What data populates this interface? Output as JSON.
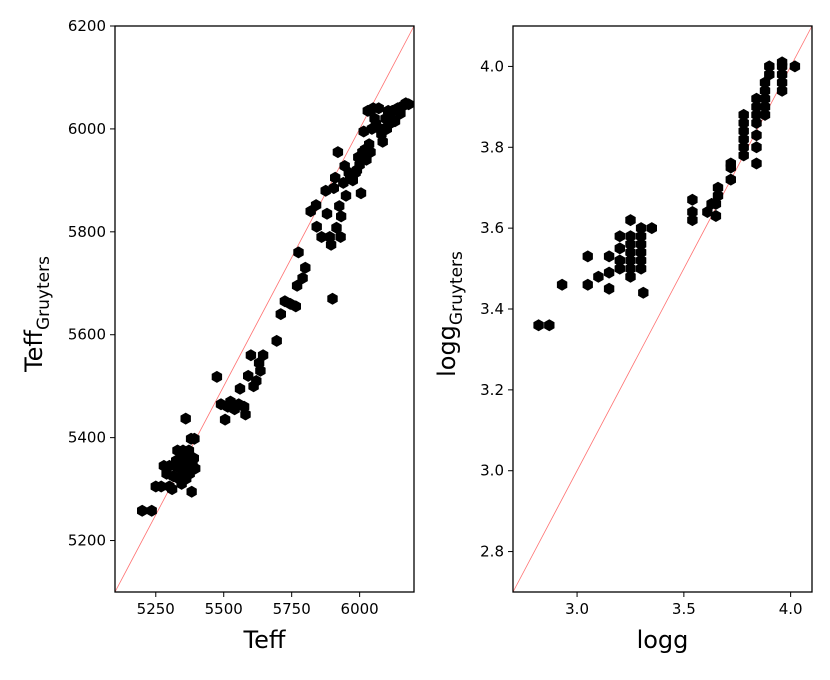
{
  "chart_data": [
    {
      "type": "scatter",
      "xlabel": "Teff",
      "ylabel": "Teff",
      "ylabel_sub": "Gruyters",
      "xlim": [
        5100,
        6200
      ],
      "ylim": [
        5100,
        6200
      ],
      "xticks": [
        5250,
        5500,
        5750,
        6000
      ],
      "yticks": [
        5200,
        5400,
        5600,
        5800,
        6000,
        6200
      ],
      "grid": false,
      "marker": "hexagon",
      "marker_color": "#000000",
      "reference_line": {
        "from": [
          5100,
          5100
        ],
        "to": [
          6200,
          6200
        ],
        "color": "#ff7070"
      },
      "points": [
        [
          5200,
          5258
        ],
        [
          5235,
          5258
        ],
        [
          5250,
          5305
        ],
        [
          5270,
          5305
        ],
        [
          5280,
          5345
        ],
        [
          5290,
          5330
        ],
        [
          5300,
          5345
        ],
        [
          5300,
          5305
        ],
        [
          5310,
          5300
        ],
        [
          5315,
          5325
        ],
        [
          5320,
          5345
        ],
        [
          5325,
          5355
        ],
        [
          5330,
          5375
        ],
        [
          5335,
          5320
        ],
        [
          5340,
          5340
        ],
        [
          5345,
          5360
        ],
        [
          5345,
          5310
        ],
        [
          5350,
          5375
        ],
        [
          5355,
          5330
        ],
        [
          5355,
          5345
        ],
        [
          5360,
          5360
        ],
        [
          5360,
          5437
        ],
        [
          5362,
          5320
        ],
        [
          5365,
          5340
        ],
        [
          5370,
          5355
        ],
        [
          5372,
          5375
        ],
        [
          5375,
          5330
        ],
        [
          5378,
          5345
        ],
        [
          5380,
          5398
        ],
        [
          5382,
          5295
        ],
        [
          5385,
          5350
        ],
        [
          5390,
          5360
        ],
        [
          5392,
          5398
        ],
        [
          5395,
          5340
        ],
        [
          5475,
          5518
        ],
        [
          5490,
          5465
        ],
        [
          5505,
          5435
        ],
        [
          5515,
          5460
        ],
        [
          5525,
          5470
        ],
        [
          5540,
          5455
        ],
        [
          5555,
          5465
        ],
        [
          5560,
          5495
        ],
        [
          5575,
          5460
        ],
        [
          5580,
          5445
        ],
        [
          5590,
          5520
        ],
        [
          5600,
          5560
        ],
        [
          5610,
          5500
        ],
        [
          5620,
          5510
        ],
        [
          5630,
          5545
        ],
        [
          5635,
          5530
        ],
        [
          5645,
          5560
        ],
        [
          5695,
          5588
        ],
        [
          5710,
          5640
        ],
        [
          5725,
          5665
        ],
        [
          5745,
          5660
        ],
        [
          5765,
          5655
        ],
        [
          5770,
          5695
        ],
        [
          5775,
          5760
        ],
        [
          5790,
          5710
        ],
        [
          5800,
          5730
        ],
        [
          5820,
          5840
        ],
        [
          5840,
          5852
        ],
        [
          5842,
          5810
        ],
        [
          5860,
          5790
        ],
        [
          5875,
          5880
        ],
        [
          5880,
          5835
        ],
        [
          5890,
          5790
        ],
        [
          5895,
          5775
        ],
        [
          5900,
          5670
        ],
        [
          5905,
          5885
        ],
        [
          5910,
          5905
        ],
        [
          5915,
          5808
        ],
        [
          5920,
          5955
        ],
        [
          5925,
          5850
        ],
        [
          5930,
          5790
        ],
        [
          5932,
          5830
        ],
        [
          5940,
          5895
        ],
        [
          5945,
          5928
        ],
        [
          5950,
          5870
        ],
        [
          5960,
          5915
        ],
        [
          5965,
          5910
        ],
        [
          5975,
          5900
        ],
        [
          5985,
          5915
        ],
        [
          5990,
          5920
        ],
        [
          5995,
          5945
        ],
        [
          6000,
          5930
        ],
        [
          6005,
          5875
        ],
        [
          6010,
          5955
        ],
        [
          6015,
          5995
        ],
        [
          6020,
          5960
        ],
        [
          6025,
          5940
        ],
        [
          6030,
          6035
        ],
        [
          6035,
          5970
        ],
        [
          6040,
          5955
        ],
        [
          6045,
          6000
        ],
        [
          6050,
          6040
        ],
        [
          6055,
          6020
        ],
        [
          6060,
          6010
        ],
        [
          6070,
          6040
        ],
        [
          6075,
          6000
        ],
        [
          6080,
          5990
        ],
        [
          6085,
          5975
        ],
        [
          6090,
          6000
        ],
        [
          6095,
          6020
        ],
        [
          6100,
          6000
        ],
        [
          6105,
          6035
        ],
        [
          6110,
          6010
        ],
        [
          6115,
          6020
        ],
        [
          6120,
          6035
        ],
        [
          6130,
          6015
        ],
        [
          6140,
          6040
        ],
        [
          6150,
          6030
        ],
        [
          6160,
          6045
        ],
        [
          6170,
          6050
        ],
        [
          6180,
          6048
        ]
      ]
    },
    {
      "type": "scatter",
      "xlabel": "logg",
      "ylabel": "logg",
      "ylabel_sub": "Gruyters",
      "xlim": [
        2.7,
        4.1
      ],
      "ylim": [
        2.7,
        4.1
      ],
      "xticks": [
        "3.0",
        "3.5",
        "4.0"
      ],
      "yticks": [
        "2.8",
        "3.0",
        "3.2",
        "3.4",
        "3.6",
        "3.8",
        "4.0"
      ],
      "grid": false,
      "marker": "hexagon",
      "marker_color": "#000000",
      "reference_line": {
        "from": [
          2.7,
          2.7
        ],
        "to": [
          4.1,
          4.1
        ],
        "color": "#ff7070"
      },
      "points": [
        [
          2.82,
          3.36
        ],
        [
          2.87,
          3.36
        ],
        [
          2.93,
          3.46
        ],
        [
          3.05,
          3.53
        ],
        [
          3.05,
          3.46
        ],
        [
          3.1,
          3.48
        ],
        [
          3.15,
          3.49
        ],
        [
          3.15,
          3.45
        ],
        [
          3.15,
          3.53
        ],
        [
          3.2,
          3.58
        ],
        [
          3.2,
          3.55
        ],
        [
          3.2,
          3.52
        ],
        [
          3.2,
          3.5
        ],
        [
          3.25,
          3.62
        ],
        [
          3.25,
          3.58
        ],
        [
          3.25,
          3.56
        ],
        [
          3.25,
          3.54
        ],
        [
          3.25,
          3.52
        ],
        [
          3.25,
          3.5
        ],
        [
          3.25,
          3.48
        ],
        [
          3.3,
          3.6
        ],
        [
          3.3,
          3.58
        ],
        [
          3.3,
          3.56
        ],
        [
          3.3,
          3.54
        ],
        [
          3.3,
          3.52
        ],
        [
          3.3,
          3.5
        ],
        [
          3.31,
          3.44
        ],
        [
          3.35,
          3.6
        ],
        [
          3.54,
          3.67
        ],
        [
          3.54,
          3.64
        ],
        [
          3.54,
          3.62
        ],
        [
          3.61,
          3.64
        ],
        [
          3.63,
          3.66
        ],
        [
          3.65,
          3.63
        ],
        [
          3.65,
          3.66
        ],
        [
          3.66,
          3.68
        ],
        [
          3.66,
          3.7
        ],
        [
          3.72,
          3.72
        ],
        [
          3.72,
          3.75
        ],
        [
          3.72,
          3.76
        ],
        [
          3.78,
          3.78
        ],
        [
          3.78,
          3.8
        ],
        [
          3.78,
          3.82
        ],
        [
          3.78,
          3.84
        ],
        [
          3.78,
          3.86
        ],
        [
          3.78,
          3.88
        ],
        [
          3.84,
          3.76
        ],
        [
          3.84,
          3.8
        ],
        [
          3.84,
          3.83
        ],
        [
          3.84,
          3.86
        ],
        [
          3.84,
          3.88
        ],
        [
          3.84,
          3.9
        ],
        [
          3.84,
          3.92
        ],
        [
          3.88,
          3.88
        ],
        [
          3.88,
          3.9
        ],
        [
          3.88,
          3.92
        ],
        [
          3.88,
          3.94
        ],
        [
          3.88,
          3.96
        ],
        [
          3.9,
          3.98
        ],
        [
          3.9,
          4.0
        ],
        [
          3.96,
          3.94
        ],
        [
          3.96,
          3.96
        ],
        [
          3.96,
          3.98
        ],
        [
          3.96,
          4.0
        ],
        [
          3.96,
          4.01
        ],
        [
          4.02,
          4.0
        ]
      ]
    }
  ]
}
